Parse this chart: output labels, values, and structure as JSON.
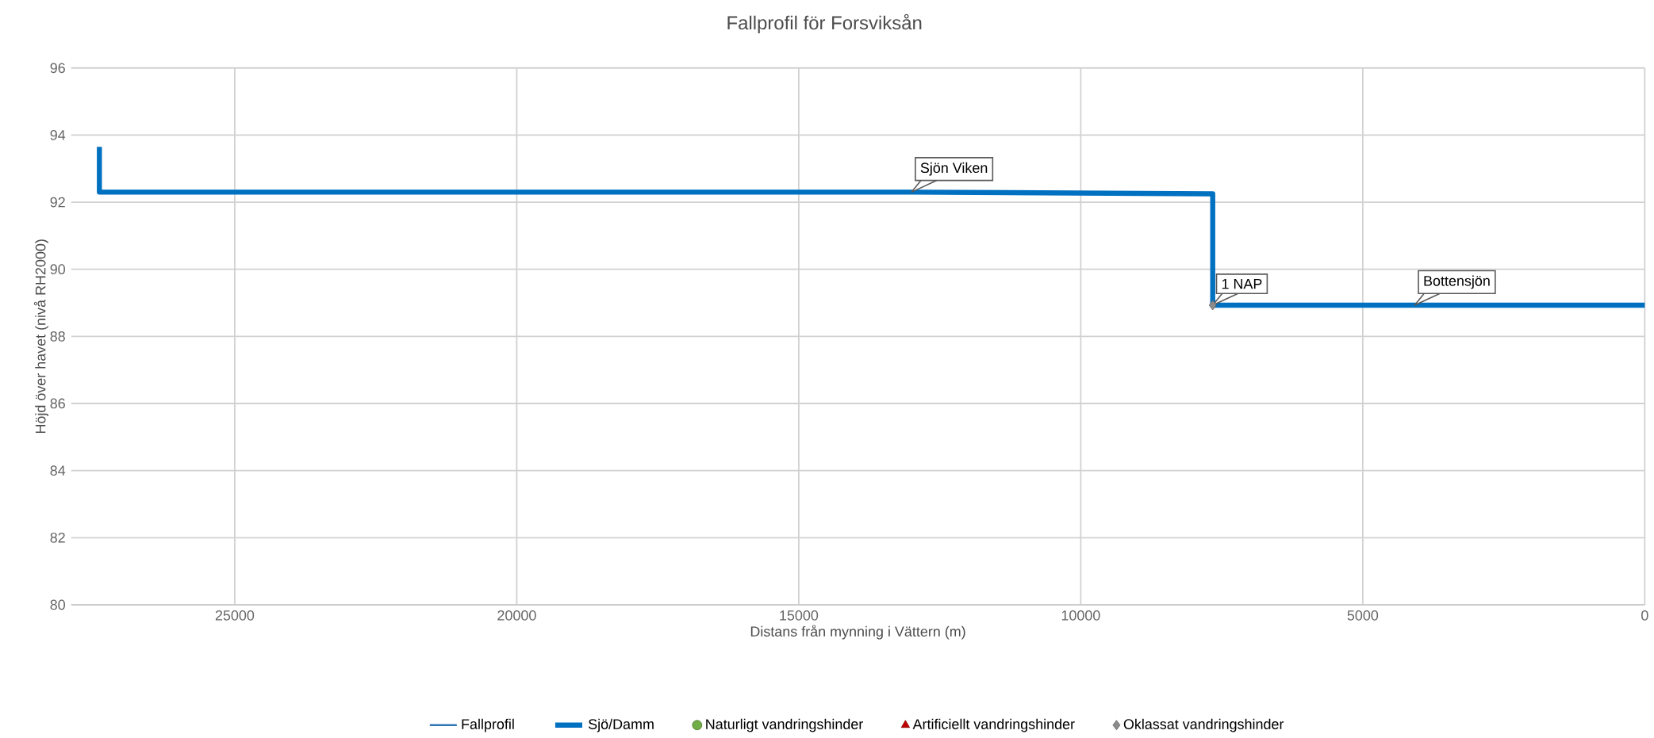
{
  "chart_data": {
    "type": "line",
    "title": "Fallprofil för Forsviksån",
    "xlabel": "Distans från mynning i Vättern (m)",
    "ylabel": "Höjd över havet (nivå RH2000)",
    "xlim": [
      27900,
      0
    ],
    "xticks": [
      25000,
      20000,
      15000,
      10000,
      5000,
      0
    ],
    "ylim": [
      80,
      96
    ],
    "yticks": [
      80,
      82,
      84,
      86,
      88,
      90,
      92,
      94,
      96
    ],
    "grid": true,
    "legend": "bottom",
    "marker": "none",
    "line_style": "solid",
    "series": [
      {
        "name": "Fallprofil",
        "color": "#2e75b6"
      },
      {
        "name": "Sjö/Damm",
        "color": "#0070c0",
        "x": [
          27400,
          27400,
          13000,
          7660,
          7660,
          0
        ],
        "values": [
          93.65,
          92.3,
          92.3,
          92.25,
          88.93,
          88.93
        ]
      },
      {
        "name": "Naturligt vandringshinder",
        "type": "scatter",
        "marker": "circle",
        "color": "#70ad47"
      },
      {
        "name": "Artificiellt vandringshinder",
        "type": "scatter",
        "marker": "triangle",
        "color": "#c00000"
      },
      {
        "name": "Oklassat vandringshinder",
        "type": "scatter",
        "marker": "diamond",
        "color": "#8c8c8c",
        "x": [
          7660
        ],
        "values": [
          88.93
        ]
      }
    ],
    "annotations": [
      {
        "text": "Sjön Viken",
        "x": 13000,
        "y": 92.3
      },
      {
        "text": "1 NAP",
        "x": 7660,
        "y": 88.93
      },
      {
        "text": "Bottensjön",
        "x": 4080,
        "y": 88.93
      }
    ]
  }
}
